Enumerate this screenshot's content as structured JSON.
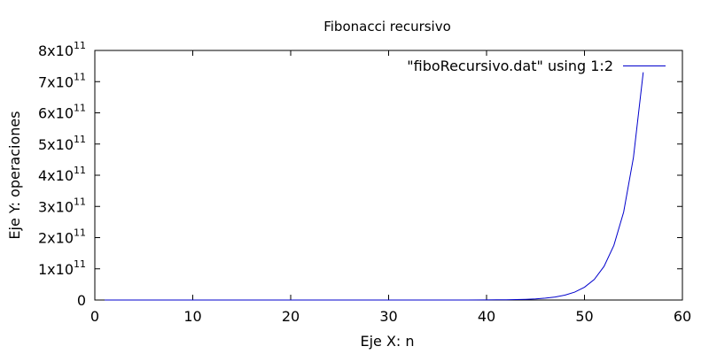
{
  "chart_data": {
    "type": "line",
    "title": "Fibonacci recursivo",
    "xlabel": "Eje X: n",
    "ylabel": "Eje Y: operaciones",
    "xlim": [
      0,
      60
    ],
    "ylim": [
      0,
      800000000000
    ],
    "grid": false,
    "legend_position": "top-right",
    "x_ticks": [
      {
        "value": 0,
        "label": "0"
      },
      {
        "value": 10,
        "label": "10"
      },
      {
        "value": 20,
        "label": "20"
      },
      {
        "value": 30,
        "label": "30"
      },
      {
        "value": 40,
        "label": "40"
      },
      {
        "value": 50,
        "label": "50"
      },
      {
        "value": 60,
        "label": "60"
      }
    ],
    "y_ticks": [
      {
        "value": 0,
        "mantissa": "0",
        "base": "",
        "exponent": ""
      },
      {
        "value": 100000000000,
        "mantissa": "1",
        "base": "x10",
        "exponent": "11"
      },
      {
        "value": 200000000000,
        "mantissa": "2",
        "base": "x10",
        "exponent": "11"
      },
      {
        "value": 300000000000,
        "mantissa": "3",
        "base": "x10",
        "exponent": "11"
      },
      {
        "value": 400000000000,
        "mantissa": "4",
        "base": "x10",
        "exponent": "11"
      },
      {
        "value": 500000000000,
        "mantissa": "5",
        "base": "x10",
        "exponent": "11"
      },
      {
        "value": 600000000000,
        "mantissa": "6",
        "base": "x10",
        "exponent": "11"
      },
      {
        "value": 700000000000,
        "mantissa": "7",
        "base": "x10",
        "exponent": "11"
      },
      {
        "value": 800000000000,
        "mantissa": "8",
        "base": "x10",
        "exponent": "11"
      }
    ],
    "series": [
      {
        "name": "\"fiboRecursivo.dat\" using 1:2",
        "color": "#0000cc",
        "x": [
          1,
          5,
          10,
          15,
          20,
          25,
          30,
          35,
          38,
          40,
          41,
          42,
          43,
          44,
          45,
          46,
          47,
          48,
          49,
          50,
          51,
          52,
          53,
          54,
          55,
          56
        ],
        "y": [
          0,
          0,
          0,
          0,
          0,
          0,
          0,
          0,
          0,
          330000000,
          530000000,
          870000000,
          1400000000,
          2300000000,
          3700000000,
          6000000000,
          9700000000,
          15700000000,
          25400000000,
          41000000000,
          66000000000,
          108000000000,
          175000000000,
          282000000000,
          457000000000,
          730000000000
        ]
      }
    ]
  }
}
